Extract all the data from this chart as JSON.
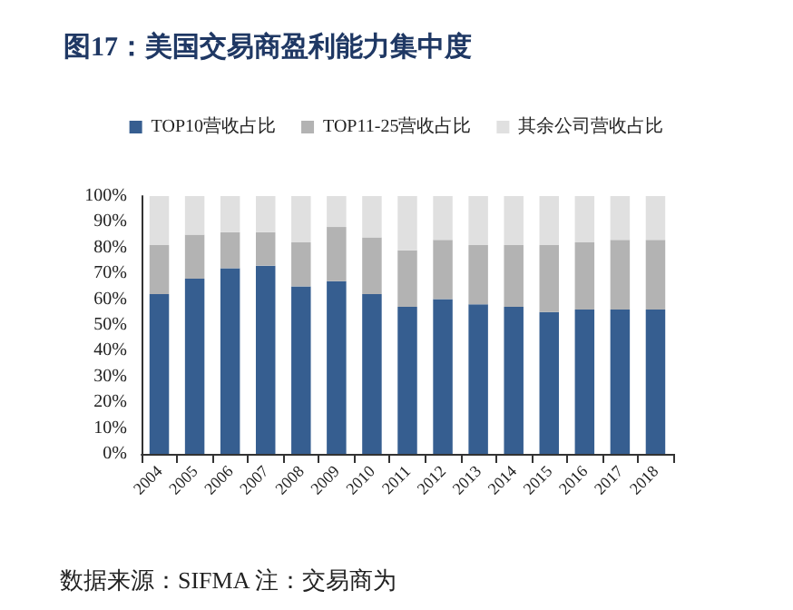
{
  "chart_data": {
    "type": "bar",
    "title": "图17：美国交易商盈利能力集中度",
    "categories": [
      "2004",
      "2005",
      "2006",
      "2007",
      "2008",
      "2009",
      "2010",
      "2011",
      "2012",
      "2013",
      "2014",
      "2015",
      "2016",
      "2017",
      "2018"
    ],
    "series": [
      {
        "name": "TOP10营收占比",
        "color": "#365e90",
        "values": [
          62,
          68,
          72,
          73,
          65,
          67,
          62,
          57,
          60,
          58,
          57,
          55,
          56,
          56,
          56
        ]
      },
      {
        "name": "TOP11-25营收占比",
        "color": "#b3b3b3",
        "values": [
          19,
          17,
          14,
          13,
          17,
          21,
          22,
          22,
          23,
          23,
          24,
          26,
          26,
          27,
          27
        ]
      },
      {
        "name": "其余公司营收占比",
        "color": "#e0e0e0",
        "values": [
          19,
          15,
          14,
          14,
          18,
          12,
          16,
          21,
          17,
          19,
          19,
          19,
          18,
          17,
          17
        ]
      }
    ],
    "stacked": true,
    "ylim": [
      0,
      100
    ],
    "yticks": [
      {
        "value": 0,
        "label": "0%"
      },
      {
        "value": 10,
        "label": "10%"
      },
      {
        "value": 20,
        "label": "20%"
      },
      {
        "value": 30,
        "label": "30%"
      },
      {
        "value": 40,
        "label": "40%"
      },
      {
        "value": 50,
        "label": "50%"
      },
      {
        "value": 60,
        "label": "60%"
      },
      {
        "value": 70,
        "label": "70%"
      },
      {
        "value": 80,
        "label": "80%"
      },
      {
        "value": 90,
        "label": "90%"
      },
      {
        "value": 100,
        "label": "100%"
      }
    ],
    "grid": false,
    "legend": "top",
    "annotations": [
      "数据来源：SIFMA 注：交易商为"
    ]
  }
}
